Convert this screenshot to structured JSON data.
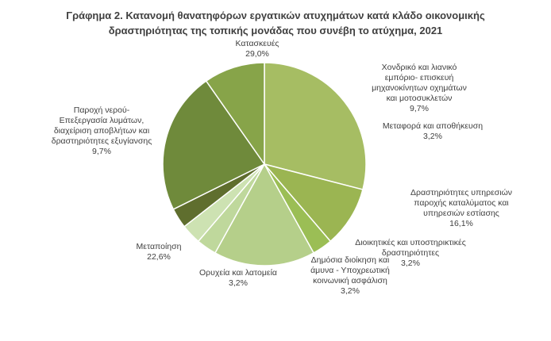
{
  "chart_data": {
    "type": "pie",
    "title_lines": [
      "Γράφημα 2. Κατανομή θανατηφόρων εργατικών ατυχημάτων  κατά κλάδο οικονομικής",
      "δραστηριότητας της τοπικής μονάδας που συνέβη το ατύχημα, 2021"
    ],
    "slices": [
      {
        "label_lines": [
          "Κατασκευές"
        ],
        "value_label": "29,0%",
        "value": 29.0,
        "color": "#a6bd63"
      },
      {
        "label_lines": [
          "Χονδρικό και λιανικό",
          "εμπόριο- επισκευή",
          "μηχανοκίνητων οχημάτων",
          "και μοτοσυκλετών"
        ],
        "value_label": "9,7%",
        "value": 9.7,
        "color": "#9bb552"
      },
      {
        "label_lines": [
          "Μεταφορά και αποθήκευση"
        ],
        "value_label": "3,2%",
        "value": 3.2,
        "color": "#9bbe55"
      },
      {
        "label_lines": [
          "Δραστηριότητες υπηρεσιών",
          "παροχής καταλύματος και",
          "υπηρεσιών εστίασης"
        ],
        "value_label": "16,1%",
        "value": 16.1,
        "color": "#b5cf8a"
      },
      {
        "label_lines": [
          "Διοικητικές και υποστηρικτικές",
          "δραστηριότητες"
        ],
        "value_label": "3,2%",
        "value": 3.2,
        "color": "#bfd89c"
      },
      {
        "label_lines": [
          "Δημόσια διοίκηση και",
          "άμυνα - Υποχρεωτική",
          "κοινωνική ασφάλιση"
        ],
        "value_label": "3,2%",
        "value": 3.2,
        "color": "#cde2b2"
      },
      {
        "label_lines": [
          "Ορυχεία και λατομεία"
        ],
        "value_label": "3,2%",
        "value": 3.2,
        "color": "#5f6e2e"
      },
      {
        "label_lines": [
          "Μεταποίηση"
        ],
        "value_label": "22,6%",
        "value": 22.6,
        "color": "#6f8a3b"
      },
      {
        "label_lines": [
          "Παροχή νερού-",
          "Επεξεργασία λυμάτων,",
          "διαχείριση αποβλήτων και",
          "δραστηριότητες εξυγίανσης"
        ],
        "value_label": "9,7%",
        "value": 9.7,
        "color": "#87a449"
      }
    ],
    "slice_border_color": "#ffffff"
  }
}
